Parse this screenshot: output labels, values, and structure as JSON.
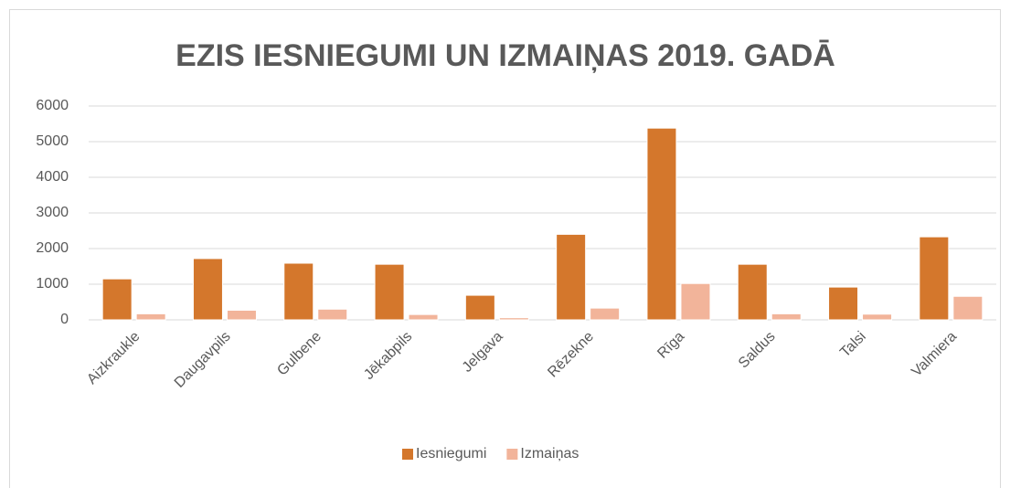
{
  "chart_data": {
    "type": "bar",
    "title": "EZIS IESNIEGUMI UN IZMAIŅAS 2019. GADĀ",
    "categories": [
      "Aizkraukle",
      "Daugavpils",
      "Gulbene",
      "Jēkabpils",
      "Jelgava",
      "Rēzekne",
      "Rīga",
      "Saldus",
      "Talsi",
      "Valmiera"
    ],
    "series": [
      {
        "name": "Iesniegumi",
        "color": "#d4772c",
        "values": [
          1150,
          1720,
          1590,
          1560,
          690,
          2400,
          5380,
          1560,
          920,
          2330
        ]
      },
      {
        "name": "Izmaiņas",
        "color": "#f2b49a",
        "values": [
          170,
          270,
          300,
          150,
          60,
          330,
          1020,
          170,
          160,
          660
        ]
      }
    ],
    "ylim": [
      0,
      6000
    ],
    "yticks": [
      0,
      1000,
      2000,
      3000,
      4000,
      5000,
      6000
    ],
    "grid": true,
    "legend": "bottom"
  }
}
